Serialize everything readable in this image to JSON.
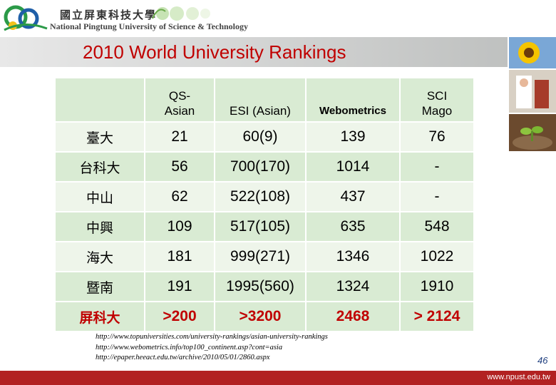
{
  "header": {
    "logo_zh": "國立屏東科技大學",
    "logo_en": "National Pingtung University of Science & Technology"
  },
  "title": "2010 World University Rankings",
  "table": {
    "columns": [
      "",
      "QS-Asian",
      "ESI (Asian)",
      "Webometrics",
      "SCI Mago"
    ],
    "col_lines": [
      [
        "QS-",
        "Asian"
      ],
      [
        "ESI (Asian)"
      ],
      [
        "Webometrics"
      ],
      [
        "SCI",
        "Mago"
      ]
    ],
    "rows": [
      {
        "school": "臺大",
        "qs": "21",
        "esi": "60(9)",
        "web": "139",
        "sci": "76"
      },
      {
        "school": "台科大",
        "qs": "56",
        "esi": "700(170)",
        "web": "1014",
        "sci": "-"
      },
      {
        "school": "中山",
        "qs": "62",
        "esi": "522(108)",
        "web": "437",
        "sci": "-"
      },
      {
        "school": "中興",
        "qs": "109",
        "esi": "517(105)",
        "web": "635",
        "sci": "548"
      },
      {
        "school": "海大",
        "qs": "181",
        "esi": "999(271)",
        "web": "1346",
        "sci": "1022"
      },
      {
        "school": "暨南",
        "qs": "191",
        "esi": "1995(560)",
        "web": "1324",
        "sci": "1910"
      },
      {
        "school": "屏科大",
        "qs": ">200",
        "esi": ">3200",
        "web": "2468",
        "sci": "> 2124"
      }
    ]
  },
  "sources": [
    "http://www.topuniversities.com/university-rankings/asian-university-rankings",
    "http://www.webometrics.info/top100_continent.asp?cont=asia",
    "http://epaper.heeact.edu.tw/archive/2010/05/01/2860.aspx"
  ],
  "page_number": "46",
  "footer_url": "www.npust.edu.tw",
  "colors": {
    "title_red": "#c00000",
    "table_green": "#d9ebd3",
    "footer_red": "#b22222"
  }
}
